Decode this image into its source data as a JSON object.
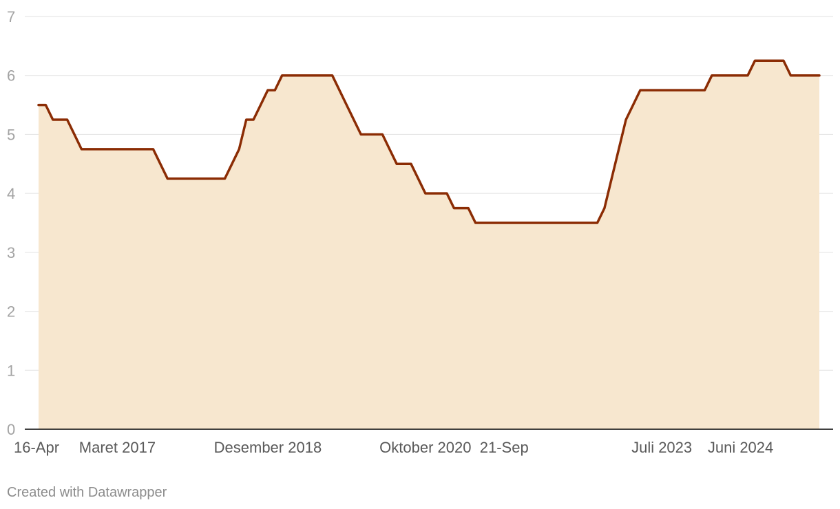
{
  "chart_data": {
    "type": "area",
    "title": "",
    "xlabel": "",
    "ylabel": "",
    "ylim": [
      0,
      7
    ],
    "yticks": [
      0,
      1,
      2,
      3,
      4,
      5,
      6,
      7
    ],
    "grid": true,
    "xtick_labels": [
      "16-Apr",
      "Maret 2017",
      "Desember 2018",
      "Oktober 2020",
      "21-Sep",
      "Juli 2023",
      "Juni 2024"
    ],
    "series": [
      {
        "x": [
          "2016-04",
          "2016-05",
          "2016-06",
          "2016-07",
          "2016-08",
          "2016-09",
          "2016-10",
          "2016-11",
          "2016-12",
          "2017-01",
          "2017-02",
          "2017-03",
          "2017-04",
          "2017-05",
          "2017-06",
          "2017-07",
          "2017-08",
          "2017-09",
          "2017-10",
          "2017-11",
          "2017-12",
          "2018-01",
          "2018-02",
          "2018-03",
          "2018-04",
          "2018-05",
          "2018-06",
          "2018-07",
          "2018-08",
          "2018-09",
          "2018-10",
          "2018-11",
          "2018-12",
          "2019-01",
          "2019-02",
          "2019-03",
          "2019-04",
          "2019-05",
          "2019-06",
          "2019-07",
          "2019-08",
          "2019-09",
          "2019-10",
          "2019-11",
          "2019-12",
          "2020-01",
          "2020-02",
          "2020-03",
          "2020-04",
          "2020-05",
          "2020-06",
          "2020-07",
          "2020-08",
          "2020-09",
          "2020-10",
          "2020-11",
          "2020-12",
          "2021-01",
          "2021-02",
          "2021-03",
          "2021-04",
          "2021-05",
          "2021-06",
          "2021-07",
          "2021-08",
          "2021-09",
          "2021-10",
          "2021-11",
          "2021-12",
          "2022-01",
          "2022-02",
          "2022-03",
          "2022-04",
          "2022-05",
          "2022-06",
          "2022-07",
          "2022-08",
          "2022-09",
          "2022-10",
          "2022-11",
          "2022-12",
          "2023-01",
          "2023-02",
          "2023-03",
          "2023-04",
          "2023-05",
          "2023-06",
          "2023-07",
          "2023-08",
          "2023-09",
          "2023-10",
          "2023-11",
          "2023-12",
          "2024-01",
          "2024-02",
          "2024-03",
          "2024-04",
          "2024-05",
          "2024-06",
          "2024-07",
          "2024-08",
          "2024-09",
          "2024-10",
          "2024-11",
          "2024-12",
          "2025-01",
          "2025-02",
          "2025-03",
          "2025-04",
          "2025-05"
        ],
        "values": [
          5.5,
          5.5,
          5.25,
          5.25,
          5.25,
          5.0,
          4.75,
          4.75,
          4.75,
          4.75,
          4.75,
          4.75,
          4.75,
          4.75,
          4.75,
          4.75,
          4.75,
          4.5,
          4.25,
          4.25,
          4.25,
          4.25,
          4.25,
          4.25,
          4.25,
          4.25,
          4.25,
          4.5,
          4.75,
          5.25,
          5.25,
          5.5,
          5.75,
          5.75,
          6.0,
          6.0,
          6.0,
          6.0,
          6.0,
          6.0,
          6.0,
          6.0,
          5.75,
          5.5,
          5.25,
          5.0,
          5.0,
          5.0,
          5.0,
          4.75,
          4.5,
          4.5,
          4.5,
          4.25,
          4.0,
          4.0,
          4.0,
          4.0,
          3.75,
          3.75,
          3.75,
          3.5,
          3.5,
          3.5,
          3.5,
          3.5,
          3.5,
          3.5,
          3.5,
          3.5,
          3.5,
          3.5,
          3.5,
          3.5,
          3.5,
          3.5,
          3.5,
          3.5,
          3.5,
          3.75,
          4.25,
          4.75,
          5.25,
          5.5,
          5.75,
          5.75,
          5.75,
          5.75,
          5.75,
          5.75,
          5.75,
          5.75,
          5.75,
          5.75,
          6.0,
          6.0,
          6.0,
          6.0,
          6.0,
          6.0,
          6.25,
          6.25,
          6.25,
          6.25,
          6.25,
          6.0,
          6.0,
          6.0,
          6.0,
          6.0
        ]
      }
    ],
    "colors": {
      "line": "#8b2c04",
      "area": "#f7e7cf",
      "grid": "#e2e2e2",
      "axis": "#000000"
    }
  },
  "footer": {
    "credit": "Created with Datawrapper"
  }
}
